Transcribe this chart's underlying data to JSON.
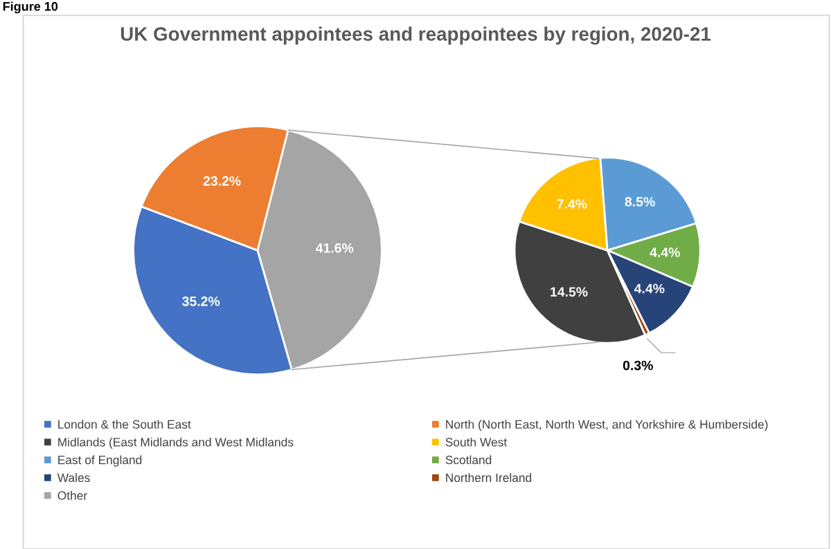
{
  "chart_data": [
    {
      "type": "pie",
      "title": "UK Government appointees and reappointees by region, 2020-21",
      "annotations": [
        "Figure 10"
      ],
      "legend": "bottom",
      "categories": [
        "London & the South East",
        "North (North East, North West, and Yorkshire & Humberside)",
        "Other"
      ],
      "values": [
        35.2,
        23.2,
        41.6
      ],
      "value_labels": [
        "35.2%",
        "23.2%",
        "41.6%"
      ],
      "colors": [
        "#4472c4",
        "#ed7d31",
        "#a5a5a5"
      ]
    },
    {
      "type": "pie",
      "legend": "bottom",
      "categories": [
        "Midlands (East Midlands and West Midlands",
        "South West",
        "East of England",
        "Scotland",
        "Wales",
        "Northern Ireland"
      ],
      "values": [
        14.5,
        7.4,
        8.5,
        4.4,
        4.4,
        0.3
      ],
      "value_labels": [
        "14.5%",
        "7.4%",
        "8.5%",
        "4.4%",
        "4.4%",
        "0.3%"
      ],
      "colors": [
        "#404040",
        "#ffc000",
        "#5b9bd5",
        "#70ad47",
        "#264478",
        "#9e480e"
      ]
    }
  ]
}
